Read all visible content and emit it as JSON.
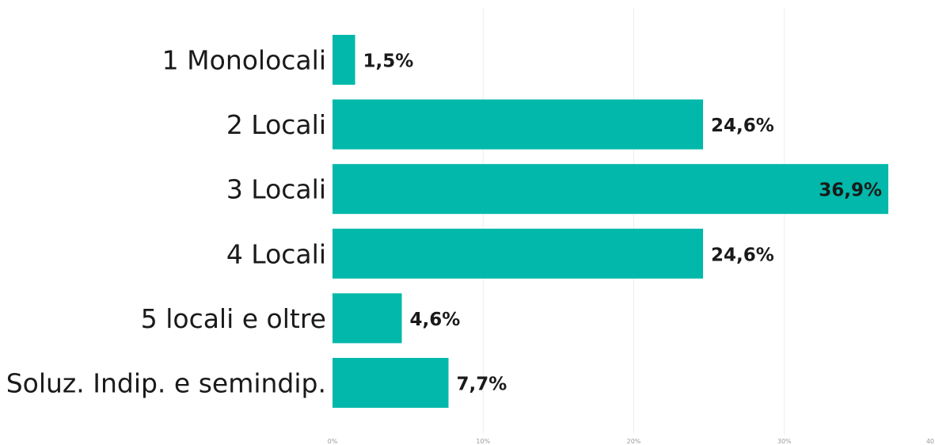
{
  "chart_data": {
    "type": "bar",
    "orientation": "horizontal",
    "categories": [
      "1 Monolocali",
      "2 Locali",
      "3 Locali",
      "4 Locali",
      "5 locali e oltre",
      "Soluz. Indip. e semindip."
    ],
    "values": [
      1.5,
      24.6,
      36.9,
      24.6,
      4.6,
      7.7
    ],
    "value_labels": [
      "1,5%",
      "24,6%",
      "36,9%",
      "24,6%",
      "4,6%",
      "7,7%"
    ],
    "x_ticks": [
      0,
      10,
      20,
      30,
      40
    ],
    "x_tick_labels": [
      "0%",
      "10%",
      "20%",
      "30%",
      "40"
    ],
    "xlim": [
      0,
      40
    ],
    "grid": true,
    "bar_color": "#01B8AA"
  }
}
